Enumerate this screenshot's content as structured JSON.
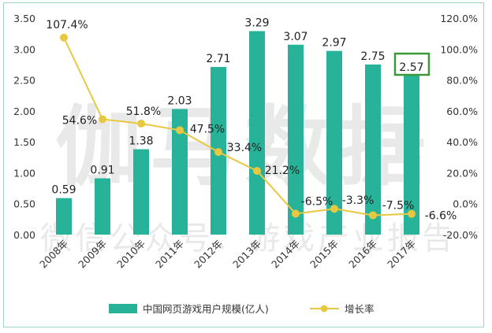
{
  "watermark": {
    "main": "伽马数据",
    "sub": "微信公众号：游戏产业报告"
  },
  "chart_data": {
    "type": "bar+line",
    "title": "",
    "categories": [
      "2008年",
      "2009年",
      "2010年",
      "2011年",
      "2012年",
      "2013年",
      "2014年",
      "2015年",
      "2016年",
      "2017年"
    ],
    "series": [
      {
        "name": "中国网页游戏用户规模(亿人)",
        "type": "bar",
        "axis": "left",
        "color": "#26b39a",
        "values": [
          0.59,
          0.91,
          1.38,
          2.03,
          2.71,
          3.29,
          3.07,
          2.97,
          2.75,
          2.57
        ],
        "labels": [
          "0.59",
          "0.91",
          "1.38",
          "2.03",
          "2.71",
          "3.29",
          "3.07",
          "2.97",
          "2.75",
          "2.57"
        ]
      },
      {
        "name": "增长率",
        "type": "line",
        "axis": "right",
        "color": "#e8c840",
        "values": [
          107.4,
          54.6,
          51.8,
          47.5,
          33.4,
          21.2,
          -6.5,
          -3.3,
          -7.5,
          -6.6
        ],
        "labels": [
          "107.4%",
          "54.6%",
          "51.8%",
          "47.5%",
          "33.4%",
          "21.2%",
          "-6.5%",
          "-3.3%",
          "-7.5%",
          "-6.6%"
        ]
      }
    ],
    "left_axis": {
      "range": [
        0,
        3.5
      ],
      "ticks": [
        "0.00",
        "0.50",
        "1.00",
        "1.50",
        "2.00",
        "2.50",
        "3.00",
        "3.50"
      ]
    },
    "right_axis": {
      "range": [
        -20,
        120
      ],
      "ticks": [
        "-20.0%",
        "0.0%",
        "20.0%",
        "40.0%",
        "60.0%",
        "80.0%",
        "100.0%",
        "120.0%"
      ]
    },
    "highlight": {
      "category": "2017年",
      "color": "#3a9a3a"
    },
    "grid": false,
    "legend": "bottom"
  }
}
